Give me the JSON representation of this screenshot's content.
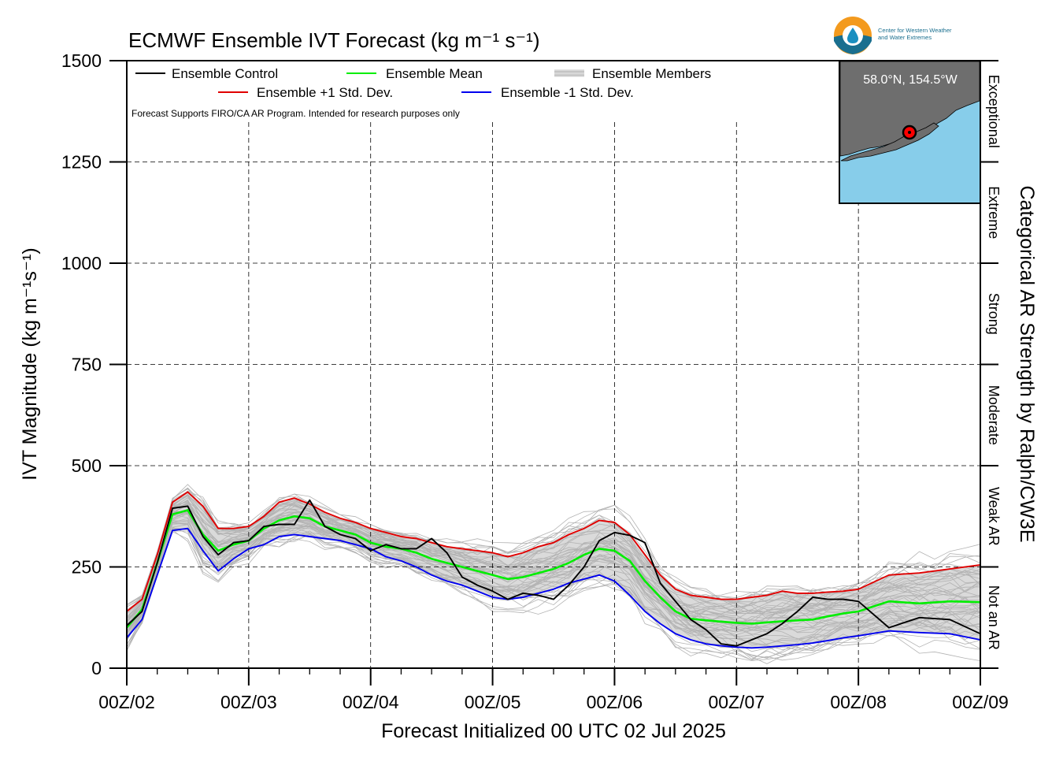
{
  "chart_data": {
    "type": "line",
    "title": "ECMWF Ensemble IVT Forecast (kg m⁻¹ s⁻¹)",
    "xlabel": "Forecast Initialized 00 UTC 02 Jul 2025",
    "ylabel": "IVT Magnitude (kg m⁻¹s⁻¹)",
    "right_label": "Categorical AR Strength by Ralph/CW3E",
    "note": "Forecast Supports FIRO/CA AR Program. Intended for research purposes only",
    "ylim": [
      0,
      1500
    ],
    "xlim_hours": [
      0,
      168
    ],
    "yticks": [
      0,
      250,
      500,
      750,
      1000,
      1250,
      1500
    ],
    "xticks": [
      {
        "hour": 0,
        "label": "00Z/02"
      },
      {
        "hour": 24,
        "label": "00Z/03"
      },
      {
        "hour": 48,
        "label": "00Z/04"
      },
      {
        "hour": 72,
        "label": "00Z/05"
      },
      {
        "hour": 96,
        "label": "00Z/06"
      },
      {
        "hour": 120,
        "label": "00Z/07"
      },
      {
        "hour": 144,
        "label": "00Z/08"
      },
      {
        "hour": 168,
        "label": "00Z/09"
      }
    ],
    "grid": true,
    "categories": [
      {
        "label": "Not an AR",
        "from": 0,
        "to": 250
      },
      {
        "label": "Weak AR",
        "from": 250,
        "to": 500
      },
      {
        "label": "Moderate",
        "from": 500,
        "to": 750
      },
      {
        "label": "Strong",
        "from": 750,
        "to": 1000
      },
      {
        "label": "Extreme",
        "from": 1000,
        "to": 1250
      },
      {
        "label": "Exceptional",
        "from": 1250,
        "to": 1500
      }
    ],
    "legend": [
      {
        "key": "control",
        "label": "Ensemble Control",
        "color": "#000000"
      },
      {
        "key": "mean",
        "label": "Ensemble Mean",
        "color": "#00ee00"
      },
      {
        "key": "members",
        "label": "Ensemble Members",
        "color": "#b0b0b0"
      },
      {
        "key": "plus",
        "label": "Ensemble +1 Std. Dev.",
        "color": "#e00000"
      },
      {
        "key": "minus",
        "label": "Ensemble -1 Std. Dev.",
        "color": "#0000ee"
      }
    ],
    "inset": {
      "location": "58.0°N, 154.5°W",
      "land_color": "#6e6e6e",
      "water_color": "#87cdea",
      "marker_color": "#ff0000"
    },
    "logo_text": [
      "Center for Western Weather",
      "and Water Extremes"
    ],
    "series": [
      {
        "key": "control",
        "name": "Ensemble Control",
        "color": "#000000",
        "x": [
          0,
          3,
          6,
          9,
          12,
          15,
          18,
          21,
          24,
          27,
          30,
          33,
          36,
          39,
          42,
          45,
          48,
          51,
          54,
          57,
          60,
          63,
          66,
          69,
          72,
          75,
          78,
          81,
          84,
          87,
          90,
          93,
          96,
          99,
          102,
          105,
          108,
          111,
          114,
          117,
          120,
          123,
          126,
          129,
          132,
          135,
          138,
          141,
          144,
          150,
          156,
          162,
          168
        ],
        "y": [
          105,
          140,
          260,
          395,
          400,
          325,
          280,
          310,
          315,
          350,
          355,
          355,
          415,
          350,
          330,
          320,
          290,
          305,
          295,
          295,
          320,
          285,
          225,
          205,
          190,
          170,
          185,
          180,
          170,
          205,
          250,
          315,
          335,
          328,
          310,
          210,
          165,
          120,
          95,
          60,
          55,
          70,
          85,
          110,
          140,
          175,
          170,
          170,
          165,
          100,
          125,
          120,
          85
        ]
      },
      {
        "key": "mean",
        "name": "Ensemble Mean",
        "color": "#00ee00",
        "x": [
          0,
          3,
          6,
          9,
          12,
          15,
          18,
          21,
          24,
          27,
          30,
          33,
          36,
          39,
          42,
          45,
          48,
          51,
          54,
          57,
          60,
          63,
          66,
          69,
          72,
          75,
          78,
          81,
          84,
          87,
          90,
          93,
          96,
          99,
          102,
          105,
          108,
          111,
          114,
          117,
          120,
          123,
          126,
          129,
          132,
          135,
          138,
          141,
          144,
          150,
          156,
          162,
          168
        ],
        "y": [
          100,
          145,
          260,
          380,
          390,
          330,
          290,
          305,
          315,
          345,
          365,
          375,
          370,
          350,
          340,
          330,
          310,
          300,
          295,
          285,
          270,
          260,
          250,
          240,
          230,
          220,
          225,
          235,
          245,
          260,
          280,
          295,
          290,
          265,
          215,
          175,
          140,
          122,
          118,
          115,
          112,
          110,
          113,
          116,
          118,
          120,
          128,
          135,
          140,
          165,
          160,
          165,
          163
        ]
      },
      {
        "key": "plus",
        "name": "Ensemble +1 Std. Dev.",
        "color": "#e00000",
        "x": [
          0,
          3,
          6,
          9,
          12,
          15,
          18,
          21,
          24,
          27,
          30,
          33,
          36,
          39,
          42,
          45,
          48,
          51,
          54,
          57,
          60,
          63,
          66,
          69,
          72,
          75,
          78,
          81,
          84,
          87,
          90,
          93,
          96,
          99,
          102,
          105,
          108,
          111,
          114,
          117,
          120,
          123,
          126,
          129,
          132,
          135,
          138,
          141,
          144,
          150,
          156,
          162,
          168
        ],
        "y": [
          140,
          170,
          280,
          410,
          435,
          400,
          345,
          345,
          350,
          375,
          410,
          420,
          405,
          385,
          370,
          360,
          345,
          335,
          325,
          320,
          310,
          300,
          295,
          290,
          285,
          275,
          285,
          300,
          310,
          330,
          345,
          365,
          360,
          330,
          280,
          230,
          195,
          180,
          175,
          170,
          170,
          175,
          180,
          190,
          185,
          185,
          188,
          190,
          195,
          230,
          235,
          245,
          255
        ]
      },
      {
        "key": "minus",
        "name": "Ensemble -1 Std. Dev.",
        "color": "#0000ee",
        "x": [
          0,
          3,
          6,
          9,
          12,
          15,
          18,
          21,
          24,
          27,
          30,
          33,
          36,
          39,
          42,
          45,
          48,
          51,
          54,
          57,
          60,
          63,
          66,
          69,
          72,
          75,
          78,
          81,
          84,
          87,
          90,
          93,
          96,
          99,
          102,
          105,
          108,
          111,
          114,
          117,
          120,
          123,
          126,
          129,
          132,
          135,
          138,
          141,
          144,
          150,
          156,
          162,
          168
        ],
        "y": [
          75,
          120,
          230,
          340,
          345,
          290,
          240,
          270,
          295,
          305,
          325,
          330,
          325,
          320,
          315,
          305,
          295,
          275,
          265,
          250,
          230,
          215,
          205,
          190,
          175,
          170,
          175,
          185,
          195,
          210,
          220,
          230,
          215,
          180,
          140,
          110,
          85,
          70,
          60,
          55,
          52,
          50,
          52,
          55,
          58,
          62,
          68,
          75,
          80,
          92,
          88,
          85,
          70
        ]
      }
    ]
  }
}
